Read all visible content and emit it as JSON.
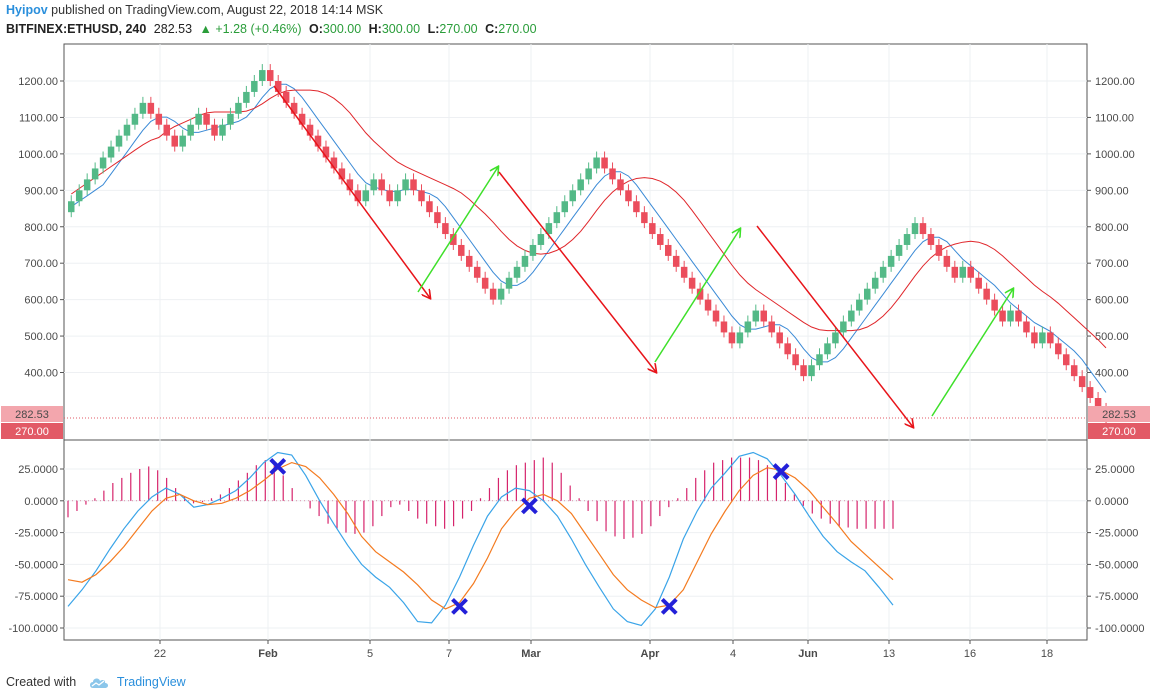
{
  "header": {
    "author": "Hyipov",
    "published_text": "published on TradingView.com, August 22, 2018 14:14 MSK",
    "symbol": "BITFINEX:ETHUSD, 240",
    "price": "282.53",
    "change": "+1.28 (+0.46%)",
    "open_label": "O:",
    "open": "300.00",
    "high_label": "H:",
    "high": "300.00",
    "low_label": "L:",
    "low": "270.00",
    "close_label": "C:",
    "close": "270.00"
  },
  "footer": {
    "created_with": "Created with",
    "brand": "TradingView"
  },
  "colors": {
    "up": "#53b987",
    "down": "#eb4d5c",
    "ma_fast": "#3a8ad6",
    "ma_slow": "#e0262b",
    "osc_blue": "#3aa4e8",
    "osc_orange": "#f47b20",
    "histogram": "#d6246c",
    "cross_marker": "#2320d8",
    "arrow_red": "#e8141a",
    "arrow_green": "#3ee02a",
    "price_label_bg": "#f3a6ad",
    "last_label_bg": "#e25a66"
  },
  "chart_data": [
    {
      "type": "renko",
      "title": "BITFINEX:ETHUSD, 240",
      "brick_size": 30,
      "ylim": [
        270,
        1260
      ],
      "y_ticks": [
        "1200.00",
        "1100.00",
        "1000.00",
        "900.00",
        "800.00",
        "700.00",
        "600.00",
        "500.00",
        "400.00"
      ],
      "x_tick_labels": [
        "22",
        "Feb",
        "5",
        "7",
        "Mar",
        "Apr",
        "4",
        "Jun",
        "13",
        "16",
        "18"
      ],
      "price_labels": {
        "current": "282.53",
        "last": "270.00"
      },
      "bricks_close": [
        870,
        900,
        930,
        960,
        990,
        1020,
        1050,
        1080,
        1110,
        1140,
        1110,
        1080,
        1050,
        1020,
        1050,
        1080,
        1110,
        1080,
        1050,
        1080,
        1110,
        1140,
        1170,
        1200,
        1230,
        1200,
        1170,
        1140,
        1110,
        1080,
        1050,
        1020,
        990,
        960,
        930,
        900,
        870,
        900,
        930,
        900,
        870,
        900,
        930,
        900,
        870,
        840,
        810,
        780,
        750,
        720,
        690,
        660,
        630,
        600,
        630,
        660,
        690,
        720,
        750,
        780,
        810,
        840,
        870,
        900,
        930,
        960,
        990,
        960,
        930,
        900,
        870,
        840,
        810,
        780,
        750,
        720,
        690,
        660,
        630,
        600,
        570,
        540,
        510,
        480,
        510,
        540,
        570,
        540,
        510,
        480,
        450,
        420,
        390,
        420,
        450,
        480,
        510,
        540,
        570,
        600,
        630,
        660,
        690,
        720,
        750,
        780,
        810,
        780,
        750,
        720,
        690,
        660,
        690,
        660,
        630,
        600,
        570,
        540,
        570,
        540,
        510,
        480,
        510,
        480,
        450,
        420,
        390,
        360,
        330,
        300,
        270
      ],
      "moving_averages": [
        {
          "name": "fast",
          "color": "#3a8ad6"
        },
        {
          "name": "slow",
          "color": "#e0262b"
        }
      ],
      "annotations": [
        {
          "type": "arrow",
          "color": "red",
          "from": [
            1195,
            1
          ],
          "to": [
            610,
            6
          ]
        },
        {
          "type": "arrow",
          "color": "green",
          "from": [
            620,
            7
          ],
          "to": [
            975,
            12
          ]
        },
        {
          "type": "arrow",
          "color": "red",
          "from": [
            960,
            13
          ],
          "to": [
            380,
            21
          ]
        },
        {
          "type": "arrow",
          "color": "green",
          "from": [
            420,
            22
          ],
          "to": [
            830,
            27
          ]
        },
        {
          "type": "arrow",
          "color": "red",
          "from": [
            820,
            28
          ],
          "to": [
            260,
            33
          ]
        },
        {
          "type": "arrow",
          "color": "green",
          "from": [
            270,
            34
          ],
          "to": [
            640,
            38
          ]
        }
      ]
    },
    {
      "type": "oscillator",
      "ylim": [
        -100,
        35
      ],
      "y_ticks": [
        "25.0000",
        "0.0000",
        "-25.0000",
        "-50.0000",
        "-75.0000",
        "-100.0000"
      ],
      "series": [
        {
          "color": "#3aa4e8",
          "values": [
            -83,
            -70,
            -55,
            -38,
            -22,
            -8,
            3,
            10,
            5,
            -5,
            -3,
            2,
            8,
            18,
            30,
            38,
            36,
            20,
            0,
            -18,
            -35,
            -50,
            -60,
            -68,
            -80,
            -95,
            -96,
            -82,
            -60,
            -35,
            -12,
            3,
            10,
            8,
            0,
            -12,
            -30,
            -50,
            -68,
            -85,
            -95,
            -98,
            -85,
            -60,
            -30,
            -8,
            10,
            22,
            35,
            38,
            33,
            20,
            5,
            -12,
            -28,
            -40,
            -48,
            -55,
            -68,
            -82
          ]
        },
        {
          "color": "#f47b20",
          "values": [
            -62,
            -64,
            -58,
            -48,
            -36,
            -22,
            -8,
            2,
            5,
            0,
            -3,
            -2,
            2,
            8,
            16,
            25,
            30,
            27,
            18,
            5,
            -10,
            -28,
            -40,
            -48,
            -56,
            -66,
            -78,
            -85,
            -80,
            -65,
            -45,
            -22,
            -8,
            2,
            5,
            0,
            -10,
            -26,
            -42,
            -58,
            -70,
            -78,
            -84,
            -82,
            -70,
            -48,
            -26,
            -8,
            8,
            20,
            26,
            24,
            18,
            8,
            -5,
            -18,
            -32,
            -42,
            -52,
            -62
          ]
        }
      ],
      "histogram": [
        -13,
        -8,
        -3,
        2,
        8,
        14,
        18,
        22,
        25,
        27,
        24,
        18,
        10,
        3,
        -2,
        -1,
        2,
        5,
        10,
        16,
        22,
        28,
        32,
        28,
        20,
        10,
        0,
        -6,
        -12,
        -18,
        -22,
        -25,
        -26,
        -25,
        -20,
        -12,
        -5,
        -3,
        -8,
        -14,
        -18,
        -20,
        -22,
        -20,
        -14,
        -8,
        2,
        10,
        18,
        24,
        28,
        30,
        32,
        34,
        30,
        22,
        12,
        2,
        -8,
        -16,
        -24,
        -28,
        -30,
        -29,
        -26,
        -20,
        -12,
        -5,
        2,
        10,
        18,
        24,
        30,
        32,
        34,
        34,
        34,
        32,
        28,
        22,
        14,
        5,
        -4,
        -10,
        -14,
        -18,
        -20,
        -21,
        -22,
        -22,
        -22,
        -22,
        -22
      ],
      "markers": [
        {
          "label": "cross",
          "x_index": 15,
          "value": 27
        },
        {
          "label": "cross",
          "x_index": 28,
          "value": -83
        },
        {
          "label": "cross",
          "x_index": 33,
          "value": -4
        },
        {
          "label": "cross",
          "x_index": 43,
          "value": -83
        },
        {
          "label": "cross",
          "x_index": 51,
          "value": 23
        }
      ]
    }
  ]
}
